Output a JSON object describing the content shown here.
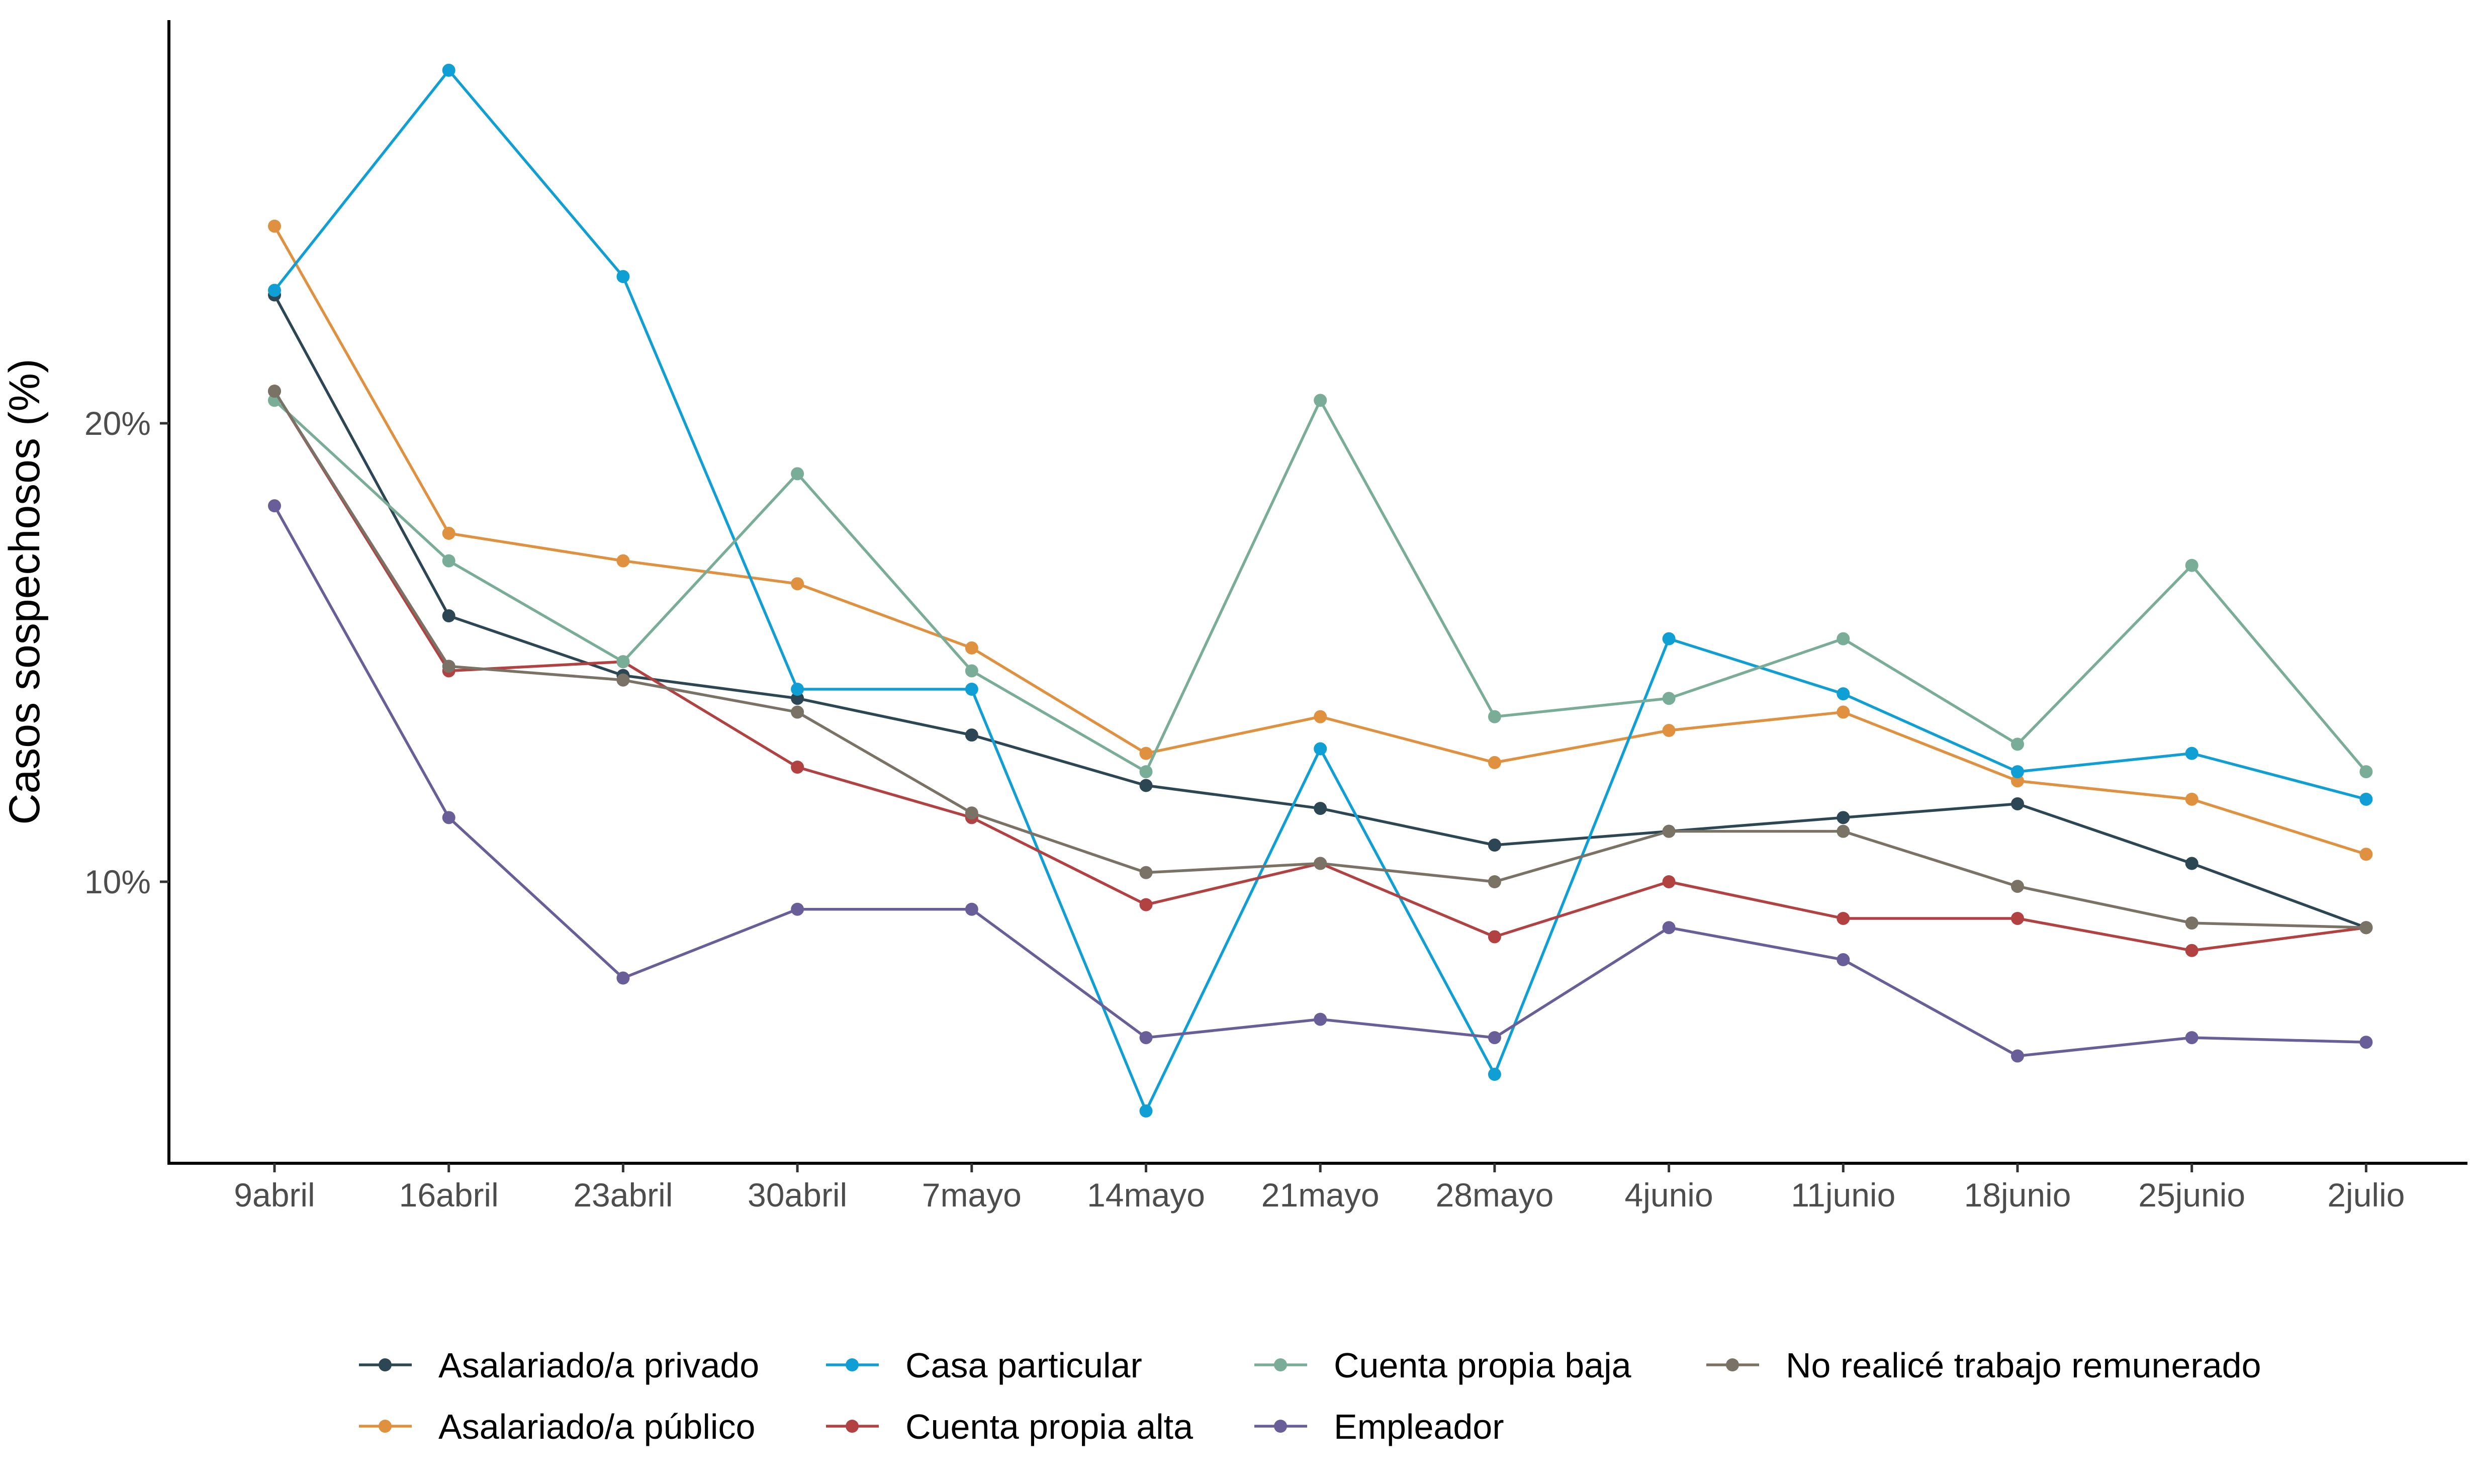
{
  "chart_data": {
    "type": "line",
    "title": "",
    "xlabel": "",
    "ylabel": "Casos sospechosos (%)",
    "categories": [
      "9abril",
      "16abril",
      "23abril",
      "30abril",
      "7mayo",
      "14mayo",
      "21mayo",
      "28mayo",
      "4junio",
      "11junio",
      "18junio",
      "25junio",
      "2julio"
    ],
    "y_ticks": [
      10,
      20
    ],
    "y_tick_labels": [
      "10%",
      "20%"
    ],
    "ylim": [
      4.1,
      28.8
    ],
    "grid": false,
    "legend_position": "bottom",
    "series": [
      {
        "name": "Asalariado/a privado",
        "color": "#2c4753",
        "values": [
          22.8,
          15.8,
          14.5,
          14.0,
          13.2,
          12.1,
          11.6,
          10.8,
          11.1,
          11.4,
          11.7,
          10.4,
          9.0
        ]
      },
      {
        "name": "Asalariado/a público",
        "color": "#e0913f",
        "values": [
          24.3,
          17.6,
          17.0,
          16.5,
          15.1,
          12.8,
          13.6,
          12.6,
          13.3,
          13.7,
          12.2,
          11.8,
          10.6
        ]
      },
      {
        "name": "Casa particular",
        "color": "#109fd5",
        "values": [
          22.9,
          27.7,
          23.2,
          14.2,
          14.2,
          5.0,
          12.9,
          5.8,
          15.3,
          14.1,
          12.4,
          12.8,
          11.8
        ]
      },
      {
        "name": "Cuenta propia alta",
        "color": "#b24242",
        "values": [
          20.7,
          14.6,
          14.8,
          12.5,
          11.4,
          9.5,
          10.4,
          8.8,
          10.0,
          9.2,
          9.2,
          8.5,
          9.0
        ]
      },
      {
        "name": "Cuenta propia baja",
        "color": "#7aad98",
        "values": [
          20.5,
          17.0,
          14.8,
          18.9,
          14.6,
          12.4,
          20.5,
          13.6,
          14.0,
          15.3,
          13.0,
          16.9,
          12.4
        ]
      },
      {
        "name": "Empleador",
        "color": "#6a5e99",
        "values": [
          18.2,
          11.4,
          7.9,
          9.4,
          9.4,
          6.6,
          7.0,
          6.6,
          9.0,
          8.3,
          6.2,
          6.6,
          6.5
        ]
      },
      {
        "name": "No realicé trabajo remunerado",
        "color": "#7a7264",
        "values": [
          20.7,
          14.7,
          14.4,
          13.7,
          11.5,
          10.2,
          10.4,
          10.0,
          11.1,
          11.1,
          9.9,
          9.1,
          9.0
        ]
      }
    ]
  }
}
